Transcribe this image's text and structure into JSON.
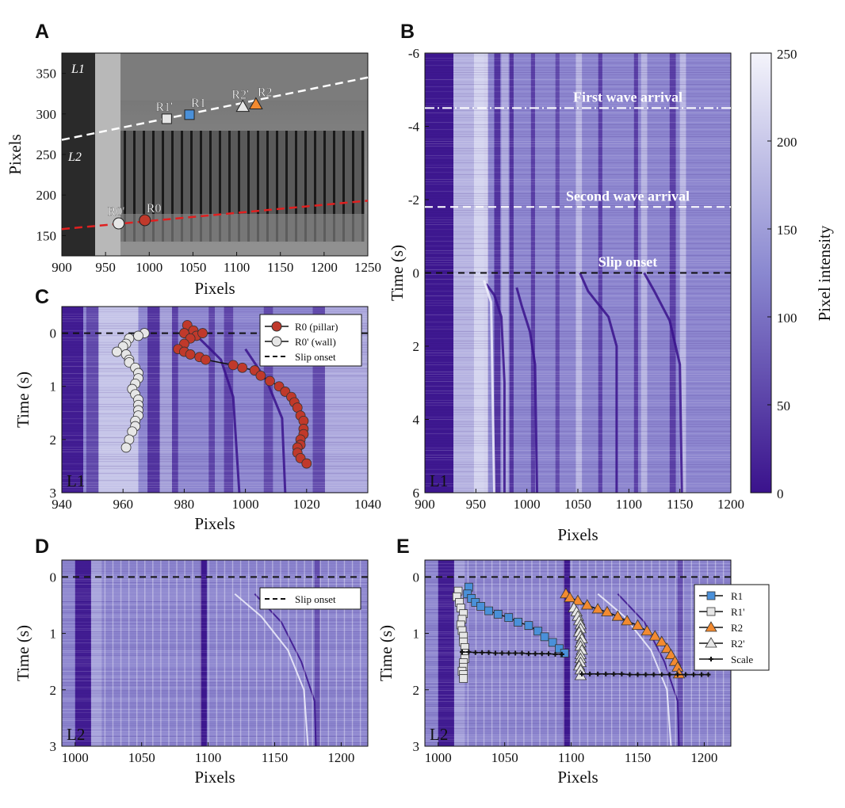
{
  "figure": {
    "panel_labels": [
      "A",
      "B",
      "C",
      "D",
      "E"
    ]
  },
  "colors": {
    "purple_dark": "#3a128c",
    "purple_light": "#d8d8f0",
    "red_marker": "#c0392b",
    "blue_marker": "#4a90d9",
    "orange_marker": "#f28a30",
    "line_L1": "#e02020"
  },
  "chart_data": [
    {
      "panel": "A",
      "type": "image",
      "xlabel": "Pixels",
      "ylabel": "Pixels",
      "xlim": [
        900,
        1250
      ],
      "ylim": [
        375,
        125
      ],
      "xticks": [
        900,
        950,
        1000,
        1050,
        1100,
        1150,
        1200,
        1250
      ],
      "yticks": [
        150,
        200,
        250,
        300,
        350
      ],
      "line_labels": [
        "L1",
        "L2"
      ],
      "points": [
        {
          "label": "R0'",
          "x": 965,
          "y": 165,
          "marker": "circle",
          "color": "#e6e6e6"
        },
        {
          "label": "R0",
          "x": 995,
          "y": 169,
          "marker": "circle",
          "color": "#c0392b"
        },
        {
          "label": "R1'",
          "x": 1020,
          "y": 294,
          "marker": "square",
          "color": "#e6e6e6"
        },
        {
          "label": "R1",
          "x": 1046,
          "y": 299,
          "marker": "square",
          "color": "#4a90d9"
        },
        {
          "label": "R2'",
          "x": 1107,
          "y": 309,
          "marker": "triangle",
          "color": "#e6e6e6"
        },
        {
          "label": "R2",
          "x": 1122,
          "y": 312,
          "marker": "triangle",
          "color": "#f28a30"
        }
      ],
      "L1": {
        "x": [
          900,
          1250
        ],
        "y": [
          158,
          193
        ]
      },
      "L2": {
        "x": [
          900,
          1250
        ],
        "y": [
          268,
          345
        ]
      }
    },
    {
      "panel": "B",
      "type": "heatmap",
      "tag": "L1",
      "xlabel": "Pixels",
      "ylabel": "Time (s)",
      "xlim": [
        900,
        1200
      ],
      "ylim": [
        -6,
        6
      ],
      "xticks": [
        900,
        950,
        1000,
        1050,
        1100,
        1150,
        1200
      ],
      "yticks": [
        -6,
        -4,
        -2,
        0,
        2,
        4,
        6
      ],
      "colorbar": {
        "label": "Pixel intensity",
        "range": [
          0,
          250
        ],
        "ticks": [
          0,
          50,
          100,
          150,
          200,
          250
        ]
      },
      "annotations": [
        {
          "text": "First wave arrival",
          "t": -4.5,
          "style": "dashdot"
        },
        {
          "text": "Second wave arrival",
          "t": -1.8,
          "style": "dashed-white"
        },
        {
          "text": "Slip onset",
          "t": 0,
          "style": "dashed-black"
        }
      ],
      "bright_columns": [
        950,
        960,
        1050,
        1110,
        1150
      ]
    },
    {
      "panel": "C",
      "type": "scatter",
      "tag": "L1",
      "xlabel": "Pixels",
      "ylabel": "Time (s)",
      "xlim": [
        940,
        1040
      ],
      "ylim": [
        -0.5,
        3
      ],
      "xticks": [
        940,
        960,
        980,
        1000,
        1020,
        1040
      ],
      "yticks": [
        0,
        1,
        2,
        3
      ],
      "slip_onset": 0,
      "legend": [
        "R0 (pillar)",
        "R0' (wall)",
        "Slip onset"
      ],
      "series": [
        {
          "name": "R0 (pillar)",
          "color": "#c0392b",
          "x": [
            981,
            983,
            980,
            984,
            986,
            982,
            980,
            978,
            980,
            982,
            985,
            987,
            996,
            999,
            1003,
            1005,
            1008,
            1011,
            1013,
            1015,
            1016,
            1017,
            1018,
            1019,
            1019,
            1019,
            1018,
            1018,
            1017,
            1017,
            1018,
            1020
          ],
          "t": [
            -0.15,
            -0.05,
            0.0,
            0.05,
            0.0,
            0.1,
            0.2,
            0.3,
            0.35,
            0.4,
            0.45,
            0.5,
            0.6,
            0.65,
            0.7,
            0.8,
            0.9,
            1.0,
            1.1,
            1.2,
            1.3,
            1.4,
            1.55,
            1.65,
            1.8,
            1.9,
            2.0,
            2.1,
            2.15,
            2.25,
            2.35,
            2.45
          ]
        },
        {
          "name": "R0' (wall)",
          "color": "#e6e6e6",
          "x": [
            967,
            965,
            962,
            961,
            960,
            958,
            961,
            962,
            962,
            964,
            965,
            965,
            964,
            963,
            964,
            965,
            965,
            965,
            965,
            964,
            964,
            963,
            962,
            961
          ],
          "t": [
            0.0,
            0.05,
            0.1,
            0.2,
            0.25,
            0.35,
            0.4,
            0.5,
            0.55,
            0.65,
            0.75,
            0.85,
            0.95,
            1.05,
            1.15,
            1.25,
            1.35,
            1.45,
            1.55,
            1.65,
            1.75,
            1.85,
            2.0,
            2.15
          ]
        }
      ]
    },
    {
      "panel": "D",
      "type": "heatmap",
      "tag": "L2",
      "xlabel": "Pixels",
      "ylabel": "Time (s)",
      "xlim": [
        990,
        1220
      ],
      "ylim": [
        -0.3,
        3
      ],
      "xticks": [
        1000,
        1050,
        1100,
        1150,
        1200
      ],
      "yticks": [
        0,
        1,
        2,
        3
      ],
      "slip_onset": 0,
      "legend": [
        "Slip onset"
      ]
    },
    {
      "panel": "E",
      "type": "scatter",
      "tag": "L2",
      "xlabel": "Pixels",
      "ylabel": "Time (s)",
      "xlim": [
        990,
        1220
      ],
      "ylim": [
        -0.3,
        3
      ],
      "xticks": [
        1000,
        1050,
        1100,
        1150,
        1200
      ],
      "yticks": [
        0,
        1,
        2,
        3
      ],
      "slip_onset": 0,
      "legend": [
        "R1",
        "R1'",
        "R2",
        "R2'",
        "Scale"
      ],
      "series": [
        {
          "name": "R1",
          "color": "#4a90d9",
          "marker": "square",
          "x": [
            1023,
            1022,
            1025,
            1028,
            1032,
            1038,
            1045,
            1053,
            1060,
            1068,
            1075,
            1080,
            1086,
            1091,
            1095
          ],
          "t": [
            0.18,
            0.3,
            0.38,
            0.45,
            0.52,
            0.6,
            0.66,
            0.72,
            0.8,
            0.86,
            0.96,
            1.06,
            1.16,
            1.27,
            1.35
          ]
        },
        {
          "name": "R1'",
          "color": "#e6e6e6",
          "marker": "square",
          "x": [
            1015,
            1014,
            1016,
            1017,
            1019,
            1018,
            1017,
            1018,
            1019,
            1019,
            1020,
            1020,
            1020,
            1019,
            1019,
            1018,
            1019,
            1019
          ],
          "t": [
            0.25,
            0.35,
            0.45,
            0.55,
            0.65,
            0.75,
            0.85,
            0.95,
            1.05,
            1.15,
            1.25,
            1.35,
            1.45,
            1.52,
            1.6,
            1.67,
            1.73,
            1.8
          ]
        },
        {
          "name": "R2",
          "color": "#f28a30",
          "marker": "triangle",
          "x": [
            1096,
            1099,
            1105,
            1112,
            1120,
            1127,
            1135,
            1142,
            1150,
            1157,
            1163,
            1168,
            1172,
            1175,
            1178,
            1180,
            1181
          ],
          "t": [
            0.3,
            0.37,
            0.42,
            0.5,
            0.57,
            0.62,
            0.7,
            0.78,
            0.86,
            0.96,
            1.05,
            1.15,
            1.27,
            1.38,
            1.5,
            1.6,
            1.72
          ]
        },
        {
          "name": "R2'",
          "color": "#e6e6e6",
          "marker": "triangle",
          "x": [
            1102,
            1104,
            1105,
            1106,
            1107,
            1107,
            1106,
            1107,
            1108,
            1107,
            1107,
            1108,
            1107,
            1107,
            1107,
            1106,
            1107,
            1107
          ],
          "t": [
            0.55,
            0.62,
            0.7,
            0.78,
            0.85,
            0.92,
            0.98,
            1.05,
            1.1,
            1.17,
            1.23,
            1.3,
            1.38,
            1.45,
            1.52,
            1.58,
            1.65,
            1.75
          ]
        },
        {
          "name": "Scale",
          "color": "#111111",
          "marker": "plus",
          "x": [
            1018,
            1023,
            1028,
            1033,
            1038,
            1043,
            1048,
            1053,
            1058,
            1063,
            1068,
            1073,
            1078,
            1083,
            1088,
            1093,
            1108,
            1114,
            1120,
            1126,
            1132,
            1138,
            1144,
            1150,
            1156,
            1162,
            1168,
            1174,
            1180,
            1186,
            1192,
            1198,
            1203
          ],
          "t": [
            1.33,
            1.33,
            1.34,
            1.34,
            1.34,
            1.35,
            1.35,
            1.35,
            1.35,
            1.35,
            1.36,
            1.36,
            1.36,
            1.36,
            1.37,
            1.37,
            1.72,
            1.72,
            1.72,
            1.72,
            1.72,
            1.72,
            1.73,
            1.73,
            1.73,
            1.73,
            1.73,
            1.73,
            1.73,
            1.73,
            1.73,
            1.73,
            1.73
          ]
        }
      ]
    }
  ]
}
